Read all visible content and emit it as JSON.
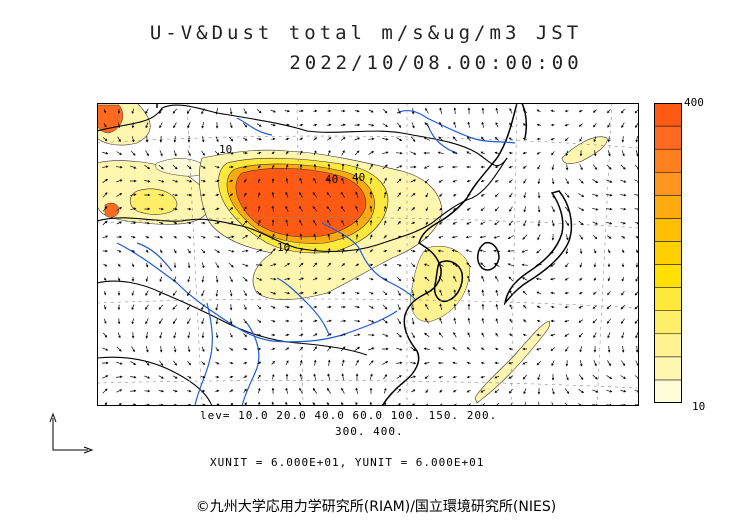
{
  "header": {
    "title_line1": "U-V&Dust total m/s&ug/m3 JST",
    "title_line2": "2022/10/08.00:00:00"
  },
  "colorbar": {
    "max_label": "400",
    "min_label": "10",
    "colors": [
      "#fffcd8",
      "#fff6b0",
      "#fff290",
      "#ffee6a",
      "#ffe83c",
      "#ffe000",
      "#ffd000",
      "#ffbf00",
      "#ffab10",
      "#ff9620",
      "#ff8020",
      "#ff6a20",
      "#ff5a14"
    ]
  },
  "contour_levels": {
    "line1": "lev= 10.0 20.0 40.0 60.0 100. 150. 200.",
    "line2": "300. 400."
  },
  "contour_labels": [
    "40",
    "40",
    "10",
    "10"
  ],
  "units": "XUNIT = 6.000E+01, YUNIT = 6.000E+01",
  "footer": {
    "copyright": "©九州大学応用力学研究所(RIAM)/国立環境研究所(NIES)"
  },
  "map": {
    "land_color": "#ffffff",
    "coast_color": "#000000",
    "river_color": "#1e5adc",
    "heavy_dust_color": "#ff5a14"
  }
}
